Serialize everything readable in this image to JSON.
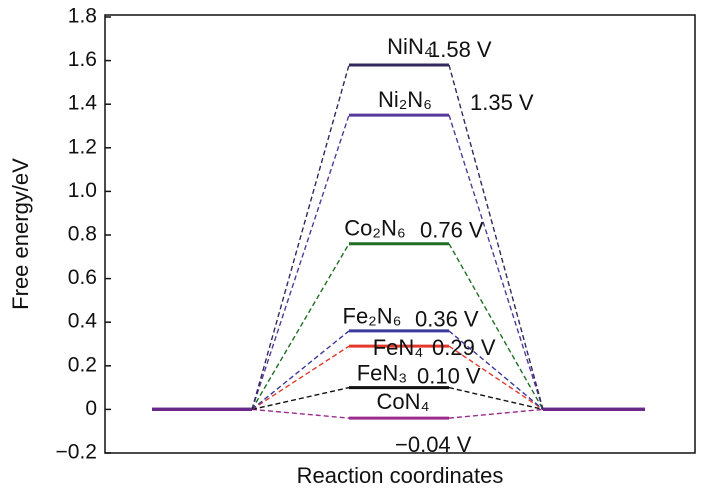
{
  "chart_data": {
    "type": "energy-profile",
    "y_label": "Free energy/eV",
    "x_label": "Reaction coordinates",
    "ylim": [
      -0.2,
      1.8
    ],
    "yticks": [
      {
        "value": -0.2,
        "label": "−0.2"
      },
      0,
      0.2,
      0.4,
      0.6,
      0.8,
      {
        "value": 1,
        "label": "1.0"
      },
      1.2,
      1.4,
      1.6,
      1.8
    ],
    "categories": [
      null,
      null,
      null
    ],
    "series": [
      {
        "name": "NiN₄",
        "color": "#33285e",
        "values": [
          0,
          1.58,
          0
        ],
        "value_labels": [
          null,
          "1.58 V",
          null
        ]
      },
      {
        "name": "Ni₂N₆",
        "color": "#55389a",
        "values": [
          0,
          1.35,
          0
        ],
        "value_labels": [
          null,
          "1.35 V",
          null
        ]
      },
      {
        "name": "Co₂N₆",
        "color": "#1f6e22",
        "values": [
          0,
          0.76,
          0
        ],
        "value_labels": [
          null,
          "0.76 V",
          null
        ]
      },
      {
        "name": "Fe₂N₆",
        "color": "#39399a",
        "values": [
          0,
          0.36,
          0
        ],
        "value_labels": [
          null,
          "0.36 V",
          null
        ]
      },
      {
        "name": "FeN₄",
        "color": "#e2392b",
        "values": [
          0,
          0.29,
          0
        ],
        "value_labels": [
          null,
          "0.29 V",
          null
        ]
      },
      {
        "name": "FeN₃",
        "color": "#111111",
        "values": [
          0,
          0.1,
          0
        ],
        "value_labels": [
          null,
          "0.10 V",
          null
        ]
      },
      {
        "name": "CoN₄",
        "color": "#9b2c8c",
        "values": [
          0,
          -0.04,
          0
        ],
        "value_labels": [
          null,
          "−0.04 V",
          null
        ]
      }
    ]
  }
}
